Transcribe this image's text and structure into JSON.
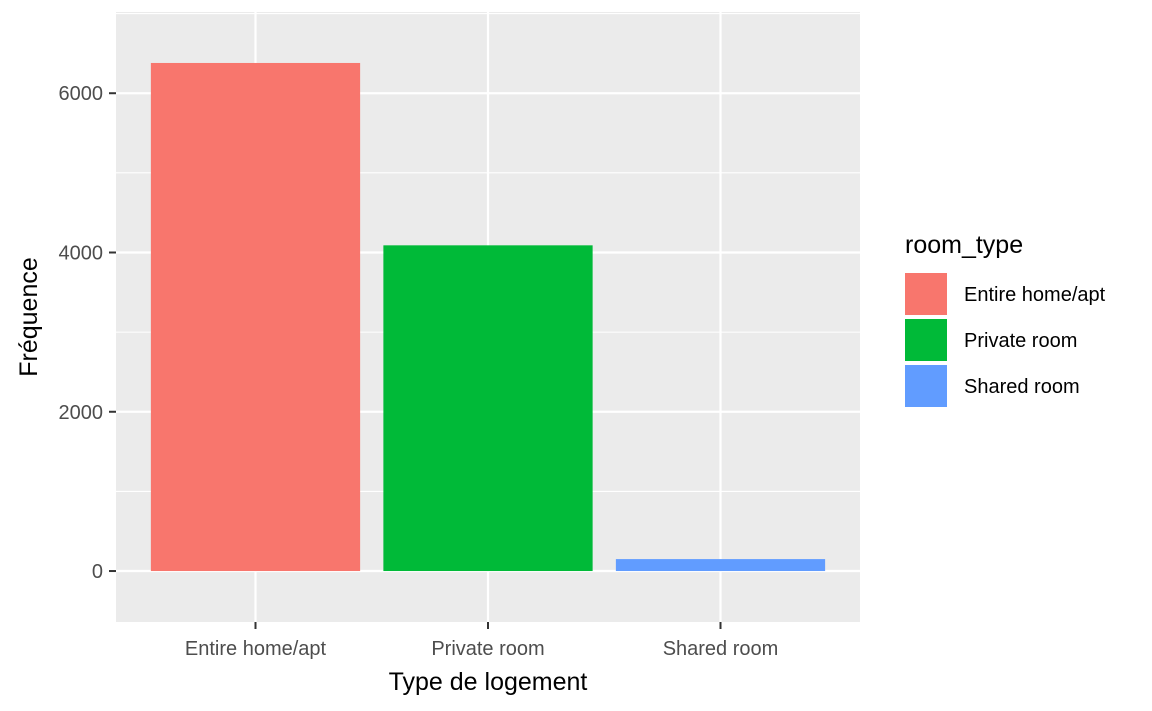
{
  "chart_data": {
    "type": "bar",
    "categories": [
      "Entire home/apt",
      "Private room",
      "Shared room"
    ],
    "values": [
      6380,
      4090,
      150
    ],
    "colors": [
      "#F8766D",
      "#00BA38",
      "#619CFF"
    ],
    "title": "",
    "xlabel": "Type de logement",
    "ylabel": "Fréquence",
    "ylim": [
      -640,
      7020
    ],
    "yticks": [
      0,
      2000,
      4000,
      6000
    ],
    "yticks_minor": [
      1000,
      3000,
      5000,
      7000
    ],
    "grid": true,
    "panel_background": "#EBEBEB",
    "grid_color": "#FFFFFF",
    "legend": {
      "title": "room_type",
      "position": "right",
      "entries": [
        "Entire home/apt",
        "Private room",
        "Shared room"
      ]
    }
  }
}
